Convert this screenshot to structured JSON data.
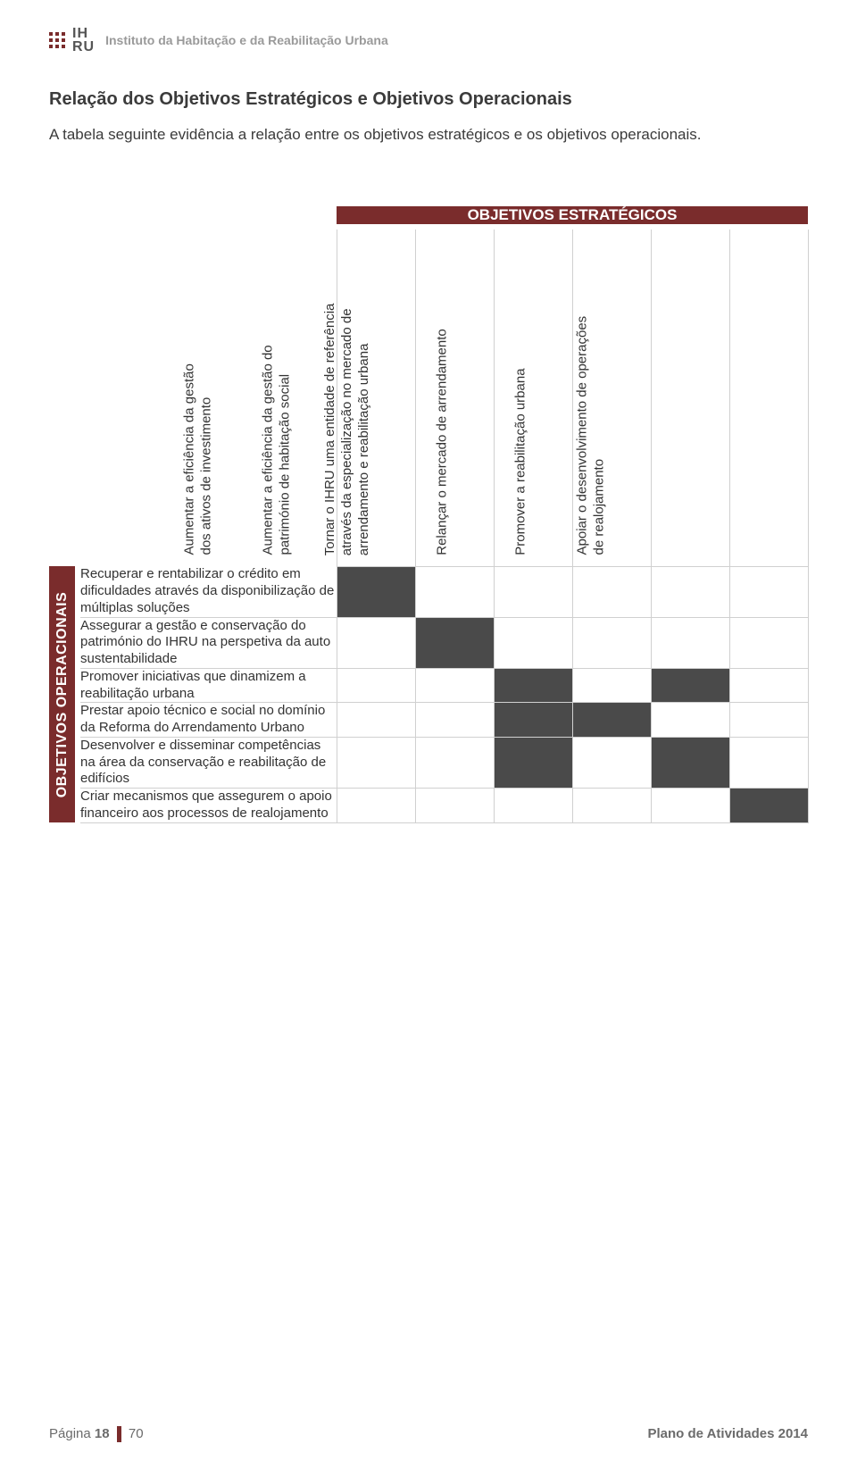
{
  "header": {
    "logo_line1": "IH",
    "logo_line2": "RU",
    "org_name": "Instituto da Habitação e da Reabilitação Urbana"
  },
  "title": "Relação dos Objetivos Estratégicos e Objetivos Operacionais",
  "subtitle": "A tabela seguinte evidência a relação entre os objetivos estratégicos e os objetivos operacionais.",
  "matrix": {
    "top_header": "OBJETIVOS ESTRATÉGICOS",
    "side_header": "OBJETIVOS OPERACIONAIS",
    "columns": [
      [
        "Aumentar a eficiência da gestão",
        "dos ativos de investimento"
      ],
      [
        "Aumentar a eficiência da gestão do",
        "património de habitação social"
      ],
      [
        "Tornar o IHRU uma entidade de referência",
        "através da especialização no mercado de",
        "arrendamento e reabilitação urbana"
      ],
      [
        "Relançar o mercado de arrendamento"
      ],
      [
        "Promover a reabilitação urbana"
      ],
      [
        "Apoiar o desenvolvimento de operações",
        "de realojamento"
      ]
    ],
    "rows": [
      "Recuperar e rentabilizar o crédito em dificuldades através da disponibilização de múltiplas soluções",
      "Assegurar a gestão e conservação do património do IHRU na perspetiva da auto sustentabilidade",
      "Promover iniciativas que dinamizem a reabilitação urbana",
      "Prestar apoio técnico e social no domínio da Reforma do Arrendamento Urbano",
      "Desenvolver e disseminar competências na área da conservação e reabilitação de edifícios",
      "Criar mecanismos que assegurem o apoio financeiro aos processos de realojamento"
    ],
    "cells": [
      [
        1,
        0,
        0,
        0,
        0,
        0
      ],
      [
        0,
        1,
        0,
        0,
        0,
        0
      ],
      [
        0,
        0,
        1,
        0,
        1,
        0
      ],
      [
        0,
        0,
        1,
        1,
        0,
        0
      ],
      [
        0,
        0,
        1,
        0,
        1,
        0
      ],
      [
        0,
        0,
        0,
        0,
        0,
        1
      ]
    ],
    "colors": {
      "brand": "#7a2c2c",
      "filled": "#4a4a4a",
      "border": "#d0d0d0",
      "text": "#333333",
      "muted": "#9a9a9a"
    }
  },
  "footer": {
    "page_label": "Página",
    "page_current": "18",
    "page_total": "70",
    "doc_title": "Plano de Atividades 2014"
  }
}
